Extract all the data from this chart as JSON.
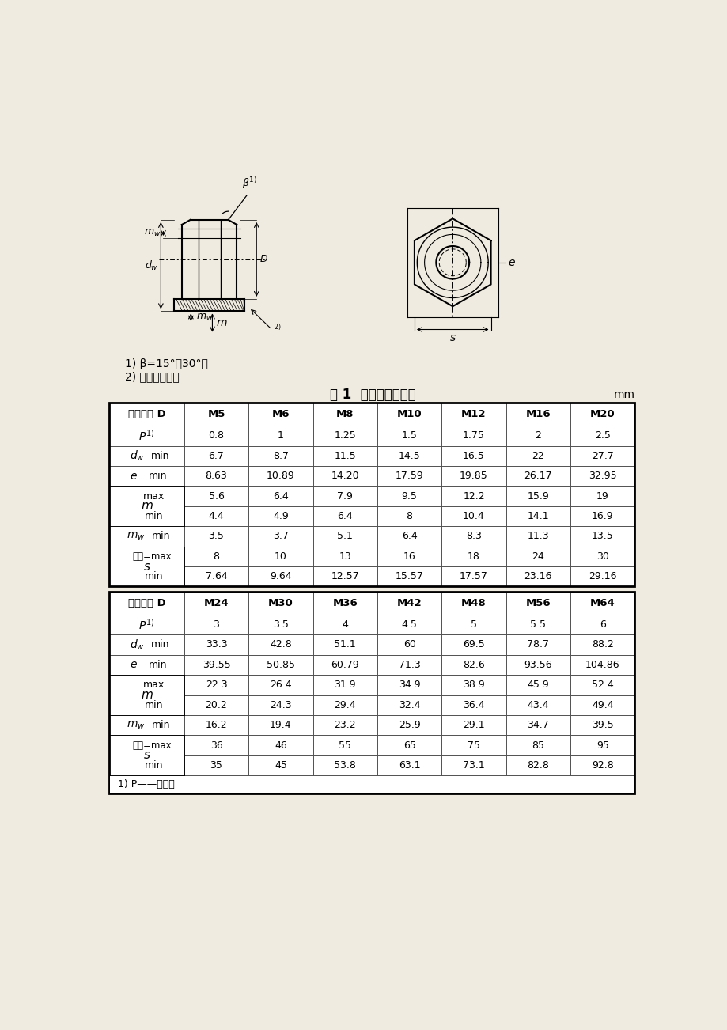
{
  "title": "表 1  优选的螺纹规格",
  "unit": "mm",
  "note1": "1) β=15°～30°。",
  "note2": "2) 允许内倒角。",
  "footnote": "1) P——螺距。",
  "bg_color": "#f0ebe0",
  "table1_headers": [
    "螺纹规格 D",
    "M5",
    "M6",
    "M8",
    "M10",
    "M12",
    "M16",
    "M20"
  ],
  "table1_data": [
    [
      "P1",
      "0.8",
      "1",
      "1.25",
      "1.5",
      "1.75",
      "2",
      "2.5"
    ],
    [
      "dw_min",
      "6.7",
      "8.7",
      "11.5",
      "14.5",
      "16.5",
      "22",
      "27.7"
    ],
    [
      "e_min",
      "8.63",
      "10.89",
      "14.20",
      "17.59",
      "19.85",
      "26.17",
      "32.95"
    ],
    [
      "m_max",
      "5.6",
      "6.4",
      "7.9",
      "9.5",
      "12.2",
      "15.9",
      "19"
    ],
    [
      "m_min",
      "4.4",
      "4.9",
      "6.4",
      "8",
      "10.4",
      "14.1",
      "16.9"
    ],
    [
      "mw_min",
      "3.5",
      "3.7",
      "5.1",
      "6.4",
      "8.3",
      "11.3",
      "13.5"
    ],
    [
      "s_nom_max",
      "8",
      "10",
      "13",
      "16",
      "18",
      "24",
      "30"
    ],
    [
      "s_min",
      "7.64",
      "9.64",
      "12.57",
      "15.57",
      "17.57",
      "23.16",
      "29.16"
    ]
  ],
  "table2_headers": [
    "螺纹规格 D",
    "M24",
    "M30",
    "M36",
    "M42",
    "M48",
    "M56",
    "M64"
  ],
  "table2_data": [
    [
      "P1",
      "3",
      "3.5",
      "4",
      "4.5",
      "5",
      "5.5",
      "6"
    ],
    [
      "dw_min",
      "33.3",
      "42.8",
      "51.1",
      "60",
      "69.5",
      "78.7",
      "88.2"
    ],
    [
      "e_min",
      "39.55",
      "50.85",
      "60.79",
      "71.3",
      "82.6",
      "93.56",
      "104.86"
    ],
    [
      "m_max",
      "22.3",
      "26.4",
      "31.9",
      "34.9",
      "38.9",
      "45.9",
      "52.4"
    ],
    [
      "m_min",
      "20.2",
      "24.3",
      "29.4",
      "32.4",
      "36.4",
      "43.4",
      "49.4"
    ],
    [
      "mw_min",
      "16.2",
      "19.4",
      "23.2",
      "25.9",
      "29.1",
      "34.7",
      "39.5"
    ],
    [
      "s_nom_max",
      "36",
      "46",
      "55",
      "65",
      "75",
      "85",
      "95"
    ],
    [
      "s_min",
      "35",
      "45",
      "53.8",
      "63.1",
      "73.1",
      "82.8",
      "92.8"
    ]
  ]
}
